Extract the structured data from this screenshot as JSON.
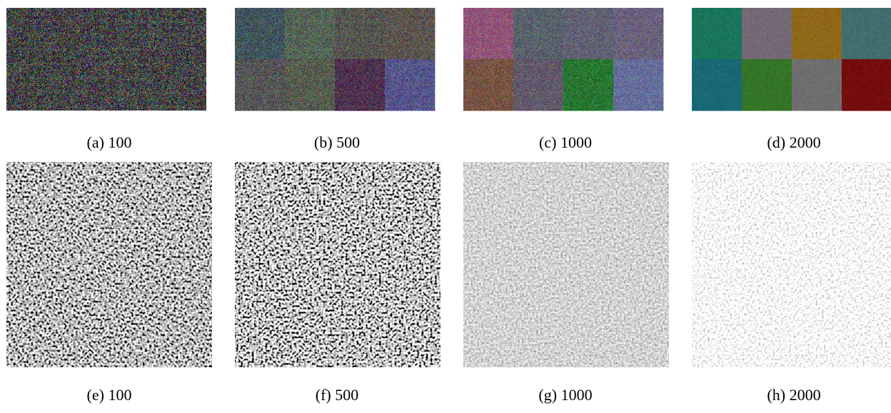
{
  "figure": {
    "captions": [
      "(a) 100",
      "(b) 500",
      "(c) 1000",
      "(d) 2000",
      "(e) 100",
      "(f) 500",
      "(g) 1000",
      "(h) 2000"
    ]
  }
}
